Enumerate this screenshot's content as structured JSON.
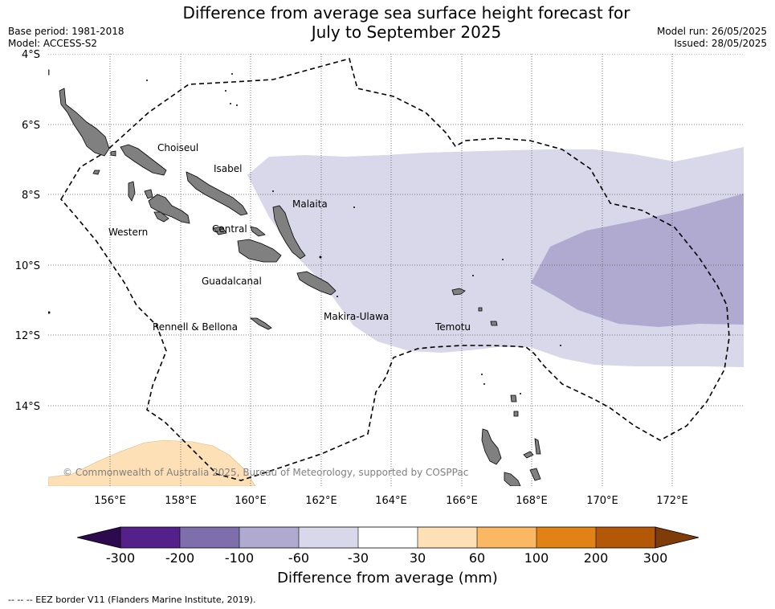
{
  "header": {
    "title_line1": "Difference from average sea surface height forecast for",
    "title_line2": "July to September 2025",
    "base_period": "Base period: 1981-2018",
    "model": "Model: ACCESS-S2",
    "model_run": "Model run: 26/05/2025",
    "issued": "Issued: 28/05/2025"
  },
  "map": {
    "lat_ticks": [
      "4°S",
      "6°S",
      "8°S",
      "10°S",
      "12°S",
      "14°S"
    ],
    "lon_ticks": [
      "156°E",
      "158°E",
      "160°E",
      "162°E",
      "164°E",
      "166°E",
      "168°E",
      "170°E",
      "172°E"
    ],
    "province_labels": [
      "Choiseul",
      "Isabel",
      "Malaita",
      "Western",
      "Central",
      "Guadalcanal",
      "Makira-Ulawa",
      "Rennell & Bellona",
      "Temotu"
    ],
    "copyright": "© Commonwealth of Australia 2025, Bureau of Meteorology, supported by COSPPac",
    "colors": {
      "land": "#808080",
      "anomaly_minus30_to_minus60": "#d8d8ea",
      "anomaly_minus60_to_minus100": "#b0aad0",
      "anomaly_30_to_60": "#fde0b6",
      "eez_border": "#000000"
    }
  },
  "colorbar": {
    "title": "Difference from average (mm)",
    "tick_labels": [
      "-300",
      "-200",
      "-100",
      "-60",
      "-30",
      "30",
      "60",
      "100",
      "200",
      "300"
    ],
    "colors": [
      "#2d0a4e",
      "#54218a",
      "#7e6fac",
      "#b0aad0",
      "#d8d8ea",
      "#ffffff",
      "#fde0b6",
      "#fbb862",
      "#e08214",
      "#b35806",
      "#7f3b08"
    ]
  },
  "footer": {
    "eez_note": "--  --  -- EEZ border V11 (Flanders Marine Institute, 2019)."
  }
}
